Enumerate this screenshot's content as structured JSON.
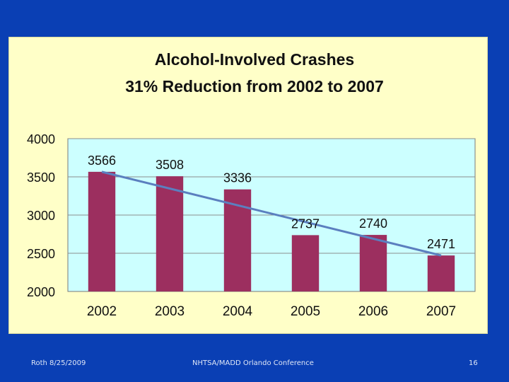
{
  "slide": {
    "background_color": "#0a3fb4",
    "panel_color": "#ffffc8",
    "plot_color": "#ccffff",
    "bar_color": "#9c2f5f",
    "trend_color": "#5b7fbf"
  },
  "chart_data": {
    "type": "bar",
    "title_line1": "Alcohol-Involved Crashes",
    "title_line2": "31% Reduction from 2002 to 2007",
    "categories": [
      "2002",
      "2003",
      "2004",
      "2005",
      "2006",
      "2007"
    ],
    "values": [
      3566,
      3508,
      3336,
      2737,
      2740,
      2471
    ],
    "data_labels": [
      "3566",
      "3508",
      "3336",
      "2737",
      "2740",
      "2471"
    ],
    "ylim": [
      2000,
      4000
    ],
    "yticks": [
      2000,
      2500,
      3000,
      3500,
      4000
    ],
    "ytick_labels": [
      "2000",
      "2500",
      "3000",
      "3500",
      "4000"
    ],
    "grid": true,
    "trendline": {
      "type": "linear",
      "start": 3566,
      "end": 2471
    },
    "xlabel": "",
    "ylabel": ""
  },
  "footer": {
    "left": "Roth 8/25/2009",
    "center": "NHTSA/MADD Orlando Conference",
    "right": "16"
  }
}
